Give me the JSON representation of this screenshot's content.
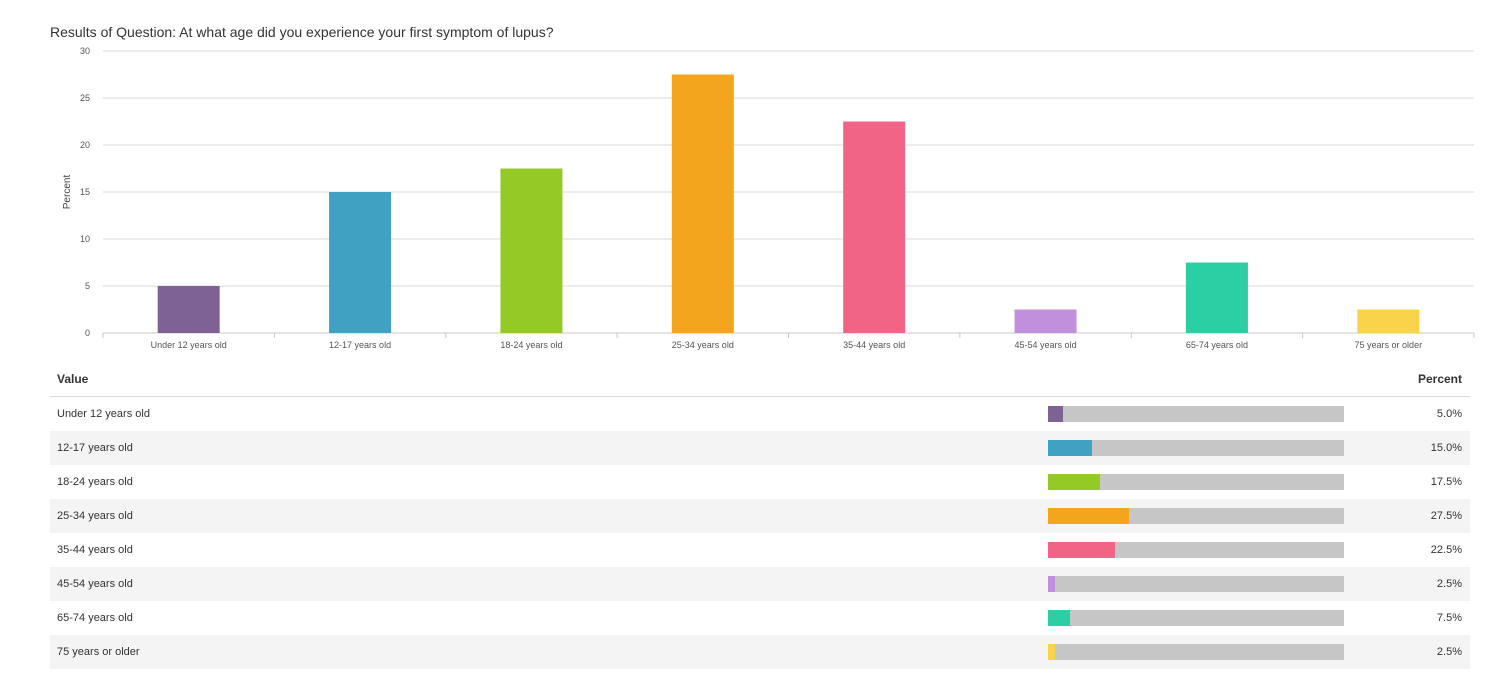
{
  "chart_data": {
    "type": "bar",
    "title": "Results of Question: At what age did you experience your first symptom of lupus?",
    "ylabel": "Percent",
    "xlabel": "",
    "ylim": [
      0,
      30
    ],
    "yticks": [
      "0",
      "5",
      "10",
      "15",
      "20",
      "25",
      "30"
    ],
    "grid": true,
    "categories": [
      "Under 12 years old",
      "12-17 years old",
      "18-24 years old",
      "25-34 years old",
      "35-44 years old",
      "45-54 years old",
      "65-74 years old",
      "75 years or older"
    ],
    "values": [
      5.0,
      15.0,
      17.5,
      27.5,
      22.5,
      2.5,
      7.5,
      2.5
    ],
    "colors": [
      "#7f6295",
      "#40a1c2",
      "#95c926",
      "#f3a51d",
      "#f16486",
      "#c190dc",
      "#2ccfa3",
      "#f9d44b"
    ]
  },
  "table": {
    "header_value": "Value",
    "header_percent": "Percent",
    "bar_track_color": "#c6c6c6",
    "rows": [
      {
        "label": "Under 12 years old",
        "percent": "5.0%"
      },
      {
        "label": "12-17 years old",
        "percent": "15.0%"
      },
      {
        "label": "18-24 years old",
        "percent": "17.5%"
      },
      {
        "label": "25-34 years old",
        "percent": "27.5%"
      },
      {
        "label": "35-44 years old",
        "percent": "22.5%"
      },
      {
        "label": "45-54 years old",
        "percent": "2.5%"
      },
      {
        "label": "65-74 years old",
        "percent": "7.5%"
      },
      {
        "label": "75 years or older",
        "percent": "2.5%"
      }
    ]
  }
}
